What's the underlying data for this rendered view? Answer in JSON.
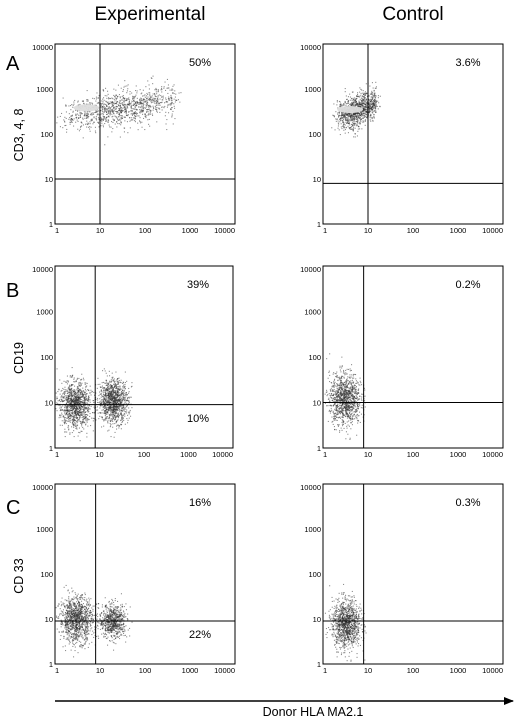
{
  "figure": {
    "column_titles": [
      "Experimental",
      "Control"
    ],
    "row_letters": [
      "A",
      "B",
      "C"
    ],
    "row_ylabels": [
      "CD3, 4, 8",
      "CD19",
      "CD 33"
    ],
    "x_axis_label": "Donor HLA MA2.1",
    "colors": {
      "ink": "#000000",
      "dots": "#333333",
      "dense_core": "#dddddd"
    }
  },
  "chart_data": [
    {
      "type": "scatter",
      "row": "A",
      "column": "Experimental",
      "ylabel": "CD3, 4, 8",
      "x_scale": "log",
      "y_scale": "log",
      "xlim": [
        1,
        10000
      ],
      "ylim": [
        1,
        10000
      ],
      "x_ticks": [
        "1",
        "10",
        "100",
        "1000",
        "10000"
      ],
      "y_ticks": [
        "1",
        "10",
        "100",
        "1000",
        "10000"
      ],
      "gates": {
        "x": 10,
        "y": 10
      },
      "quadrant_labels": [
        {
          "quadrant": "upper-right",
          "text": "50%"
        }
      ],
      "populations": [
        {
          "x_range": [
            1.5,
            500
          ],
          "y_center": 380,
          "y_spread_decades": 0.6,
          "tilt": 0.15,
          "density": "high",
          "core_x": 5
        }
      ]
    },
    {
      "type": "scatter",
      "row": "A",
      "column": "Control",
      "ylabel": "",
      "x_scale": "log",
      "y_scale": "log",
      "xlim": [
        1,
        10000
      ],
      "ylim": [
        1,
        10000
      ],
      "x_ticks": [
        "1",
        "10",
        "100",
        "1000",
        "10000"
      ],
      "y_ticks": [
        "1",
        "10",
        "100",
        "1000",
        "10000"
      ],
      "gates": {
        "x": 10,
        "y": 8
      },
      "quadrant_labels": [
        {
          "quadrant": "upper-right",
          "text": "3.6%"
        }
      ],
      "populations": [
        {
          "x_range": [
            2,
            15
          ],
          "y_center": 350,
          "y_spread_decades": 0.55,
          "tilt": 0.35,
          "density": "high",
          "core_x": 4
        }
      ]
    },
    {
      "type": "scatter",
      "row": "B",
      "column": "Experimental",
      "ylabel": "CD19",
      "x_scale": "log",
      "y_scale": "log",
      "xlim": [
        1,
        10000
      ],
      "ylim": [
        1,
        10000
      ],
      "x_ticks": [
        "1",
        "10",
        "100",
        "1000",
        "10000"
      ],
      "y_ticks": [
        "1",
        "10",
        "100",
        "1000",
        "10000"
      ],
      "gates": {
        "x": 8,
        "y": 9
      },
      "quadrant_labels": [
        {
          "quadrant": "upper-right",
          "text": "39%"
        },
        {
          "quadrant": "lower-right",
          "text": "10%"
        }
      ],
      "populations": [
        {
          "x_range": [
            1.2,
            6.5
          ],
          "y_center": 9,
          "y_spread_decades": 0.8,
          "tilt": 0,
          "density": "high"
        },
        {
          "x_range": [
            9,
            45
          ],
          "y_center": 11,
          "y_spread_decades": 0.75,
          "tilt": 0,
          "density": "high"
        }
      ]
    },
    {
      "type": "scatter",
      "row": "B",
      "column": "Control",
      "ylabel": "",
      "x_scale": "log",
      "y_scale": "log",
      "xlim": [
        1,
        10000
      ],
      "ylim": [
        1,
        10000
      ],
      "x_ticks": [
        "1",
        "10",
        "100",
        "1000",
        "10000"
      ],
      "y_ticks": [
        "1",
        "10",
        "100",
        "1000",
        "10000"
      ],
      "gates": {
        "x": 8,
        "y": 10
      },
      "quadrant_labels": [
        {
          "quadrant": "upper-right",
          "text": "0.2%"
        }
      ],
      "populations": [
        {
          "x_range": [
            1.3,
            7
          ],
          "y_center": 12,
          "y_spread_decades": 0.9,
          "tilt": 0,
          "density": "high"
        }
      ]
    },
    {
      "type": "scatter",
      "row": "C",
      "column": "Experimental",
      "ylabel": "CD 33",
      "x_scale": "log",
      "y_scale": "log",
      "xlim": [
        1,
        10000
      ],
      "ylim": [
        1,
        10000
      ],
      "x_ticks": [
        "1",
        "10",
        "100",
        "1000",
        "10000"
      ],
      "y_ticks": [
        "1",
        "10",
        "100",
        "1000",
        "10000"
      ],
      "gates": {
        "x": 8,
        "y": 9
      },
      "quadrant_labels": [
        {
          "quadrant": "upper-right",
          "text": "16%"
        },
        {
          "quadrant": "lower-right",
          "text": "22%"
        }
      ],
      "populations": [
        {
          "x_range": [
            1.2,
            7
          ],
          "y_center": 10,
          "y_spread_decades": 0.8,
          "tilt": 0,
          "density": "high"
        },
        {
          "x_range": [
            9,
            40
          ],
          "y_center": 9,
          "y_spread_decades": 0.6,
          "tilt": 0,
          "density": "medium"
        }
      ]
    },
    {
      "type": "scatter",
      "row": "C",
      "column": "Control",
      "ylabel": "",
      "x_scale": "log",
      "y_scale": "log",
      "xlim": [
        1,
        10000
      ],
      "ylim": [
        1,
        10000
      ],
      "x_ticks": [
        "1",
        "10",
        "100",
        "1000",
        "10000"
      ],
      "y_ticks": [
        "1",
        "10",
        "100",
        "1000",
        "10000"
      ],
      "gates": {
        "x": 8,
        "y": 9
      },
      "quadrant_labels": [
        {
          "quadrant": "upper-right",
          "text": "0.3%"
        }
      ],
      "populations": [
        {
          "x_range": [
            1.5,
            7
          ],
          "y_center": 8,
          "y_spread_decades": 0.85,
          "tilt": 0,
          "density": "high"
        }
      ]
    }
  ]
}
